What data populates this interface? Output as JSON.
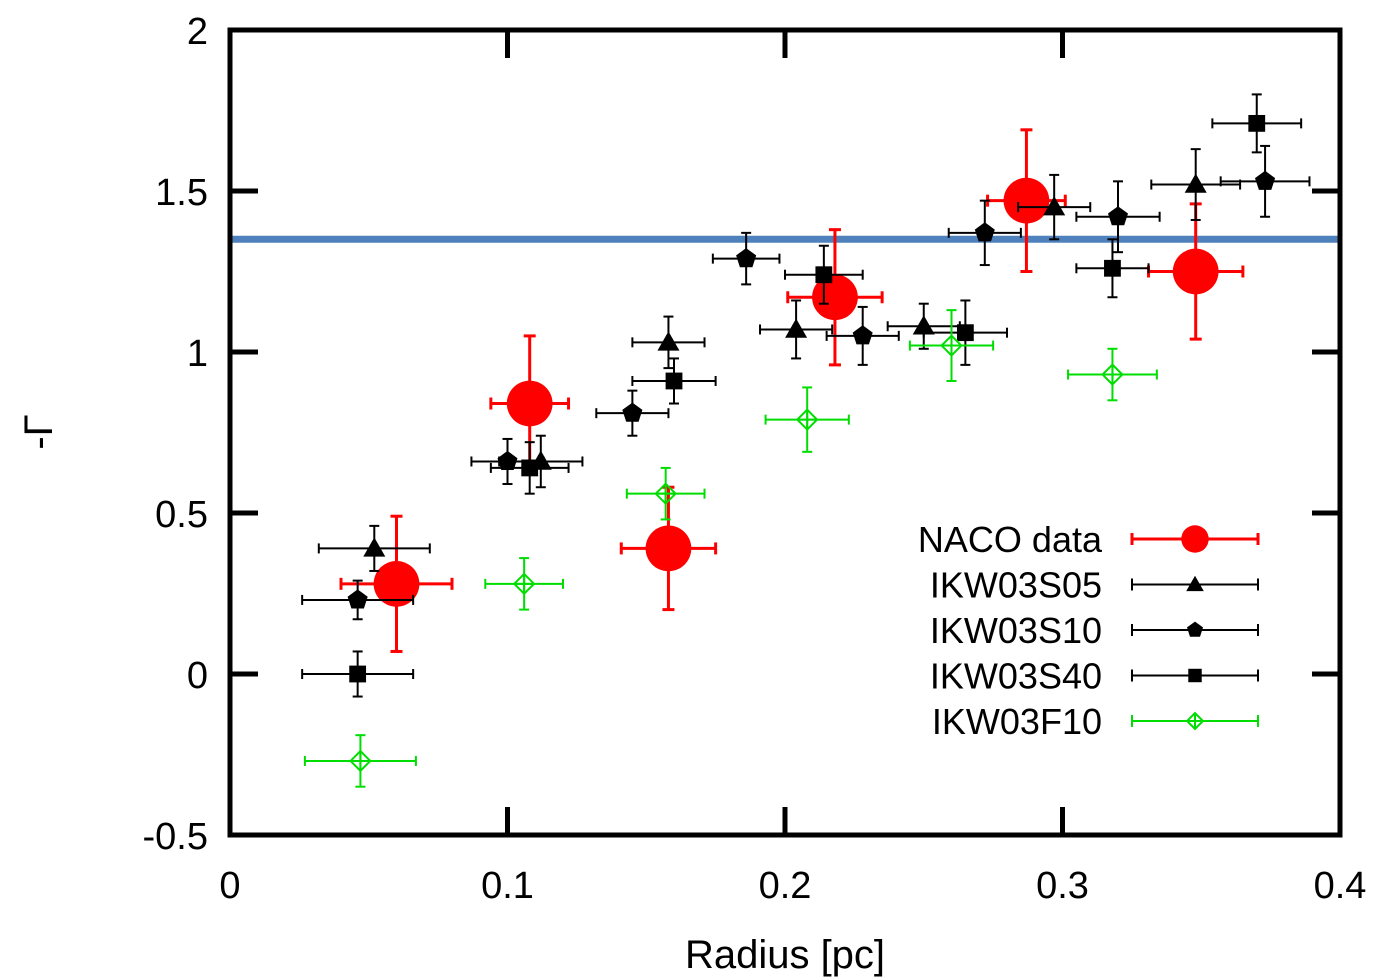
{
  "chart_data": {
    "type": "scatter",
    "xlabel": "Radius [pc]",
    "ylabel": "-Γ",
    "xlim": [
      0,
      0.4
    ],
    "ylim": [
      -0.5,
      2
    ],
    "xticks": [
      "0",
      "0.1",
      "0.2",
      "0.3",
      "0.4"
    ],
    "yticks": [
      "-0.5",
      "0",
      "0.5",
      "1",
      "1.5",
      "2"
    ],
    "grid": false,
    "legend_position": "lower-right",
    "reference_line": {
      "y": 1.35,
      "color": "#4f81bd"
    },
    "series": [
      {
        "name": "NACO data",
        "marker": "circle",
        "color": "#ff0000",
        "points": [
          {
            "x": 0.06,
            "y": 0.28,
            "xerr": 0.02,
            "yerr": 0.21
          },
          {
            "x": 0.108,
            "y": 0.84,
            "xerr": 0.014,
            "yerr": 0.21
          },
          {
            "x": 0.158,
            "y": 0.39,
            "xerr": 0.017,
            "yerr": 0.19
          },
          {
            "x": 0.218,
            "y": 1.17,
            "xerr": 0.017,
            "yerr": 0.21
          },
          {
            "x": 0.287,
            "y": 1.47,
            "xerr": 0.014,
            "yerr": 0.22
          },
          {
            "x": 0.348,
            "y": 1.25,
            "xerr": 0.017,
            "yerr": 0.21
          }
        ]
      },
      {
        "name": "IKW03S05",
        "marker": "triangle",
        "color": "#000000",
        "points": [
          {
            "x": 0.052,
            "y": 0.39,
            "xerr": 0.02,
            "yerr": 0.07
          },
          {
            "x": 0.112,
            "y": 0.66,
            "xerr": 0.015,
            "yerr": 0.08
          },
          {
            "x": 0.158,
            "y": 1.03,
            "xerr": 0.013,
            "yerr": 0.08
          },
          {
            "x": 0.204,
            "y": 1.07,
            "xerr": 0.013,
            "yerr": 0.09
          },
          {
            "x": 0.25,
            "y": 1.08,
            "xerr": 0.013,
            "yerr": 0.07
          },
          {
            "x": 0.297,
            "y": 1.45,
            "xerr": 0.013,
            "yerr": 0.1
          },
          {
            "x": 0.348,
            "y": 1.52,
            "xerr": 0.016,
            "yerr": 0.11
          }
        ]
      },
      {
        "name": "IKW03S10",
        "marker": "pentagon",
        "color": "#000000",
        "points": [
          {
            "x": 0.046,
            "y": 0.23,
            "xerr": 0.02,
            "yerr": 0.06
          },
          {
            "x": 0.1,
            "y": 0.66,
            "xerr": 0.013,
            "yerr": 0.07
          },
          {
            "x": 0.145,
            "y": 0.81,
            "xerr": 0.013,
            "yerr": 0.07
          },
          {
            "x": 0.186,
            "y": 1.29,
            "xerr": 0.012,
            "yerr": 0.08
          },
          {
            "x": 0.228,
            "y": 1.05,
            "xerr": 0.013,
            "yerr": 0.09
          },
          {
            "x": 0.272,
            "y": 1.37,
            "xerr": 0.013,
            "yerr": 0.1
          },
          {
            "x": 0.32,
            "y": 1.42,
            "xerr": 0.015,
            "yerr": 0.11
          },
          {
            "x": 0.373,
            "y": 1.53,
            "xerr": 0.016,
            "yerr": 0.11
          }
        ]
      },
      {
        "name": "IKW03S40",
        "marker": "square",
        "color": "#000000",
        "points": [
          {
            "x": 0.046,
            "y": 0.0,
            "xerr": 0.02,
            "yerr": 0.07
          },
          {
            "x": 0.108,
            "y": 0.64,
            "xerr": 0.014,
            "yerr": 0.08
          },
          {
            "x": 0.16,
            "y": 0.91,
            "xerr": 0.015,
            "yerr": 0.07
          },
          {
            "x": 0.214,
            "y": 1.24,
            "xerr": 0.014,
            "yerr": 0.09
          },
          {
            "x": 0.265,
            "y": 1.06,
            "xerr": 0.015,
            "yerr": 0.1
          },
          {
            "x": 0.318,
            "y": 1.26,
            "xerr": 0.013,
            "yerr": 0.09
          },
          {
            "x": 0.37,
            "y": 1.71,
            "xerr": 0.016,
            "yerr": 0.09
          }
        ]
      },
      {
        "name": "IKW03F10",
        "marker": "open-diamond",
        "color": "#00dd00",
        "points": [
          {
            "x": 0.047,
            "y": -0.27,
            "xerr": 0.02,
            "yerr": 0.08
          },
          {
            "x": 0.106,
            "y": 0.28,
            "xerr": 0.014,
            "yerr": 0.08
          },
          {
            "x": 0.157,
            "y": 0.56,
            "xerr": 0.014,
            "yerr": 0.08
          },
          {
            "x": 0.208,
            "y": 0.79,
            "xerr": 0.015,
            "yerr": 0.1
          },
          {
            "x": 0.26,
            "y": 1.02,
            "xerr": 0.015,
            "yerr": 0.11
          },
          {
            "x": 0.318,
            "y": 0.93,
            "xerr": 0.016,
            "yerr": 0.08
          }
        ]
      }
    ]
  }
}
